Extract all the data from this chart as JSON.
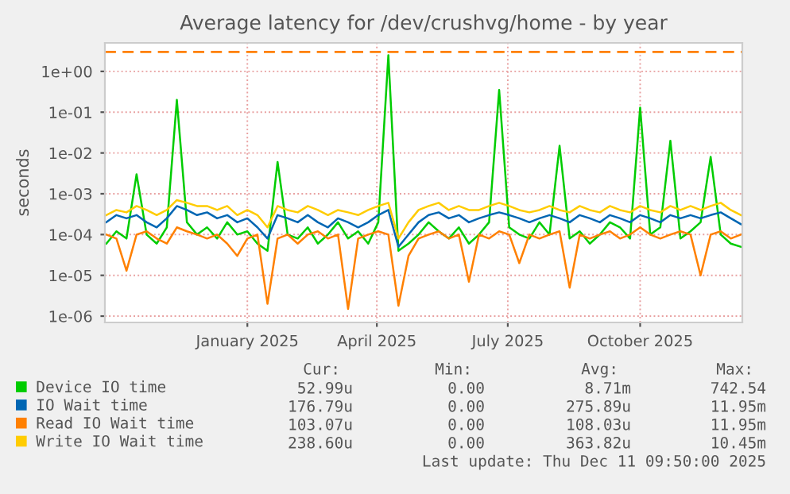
{
  "chart_data": {
    "type": "line",
    "title": "Average latency for /dev/crushvg/home - by year",
    "ylabel": "seconds",
    "log": "y",
    "xlim": [
      "2024-09-24",
      "2025-12-11"
    ],
    "xticks": [
      {
        "value": "2025-01-01",
        "label": "January 2025"
      },
      {
        "value": "2025-04-01",
        "label": "April 2025"
      },
      {
        "value": "2025-07-01",
        "label": "July 2025"
      },
      {
        "value": "2025-10-01",
        "label": "October 2025"
      }
    ],
    "ylim": [
      7e-07,
      5
    ],
    "yticks": [
      {
        "value": 1e-06,
        "label": "1e-06"
      },
      {
        "value": 1e-05,
        "label": "1e-05"
      },
      {
        "value": 0.0001,
        "label": "1e-04"
      },
      {
        "value": 0.001,
        "label": "1e-03"
      },
      {
        "value": 0.01,
        "label": "1e-02"
      },
      {
        "value": 0.1,
        "label": "1e-01"
      },
      {
        "value": 1,
        "label": "1e+00"
      }
    ],
    "grid": true,
    "legend": "bottom",
    "marker": "none",
    "line_style": "solid",
    "ref_lines": [
      {
        "axis": "y",
        "value": 3,
        "color": "#ff8000",
        "line_style": "dashed"
      }
    ],
    "x": [
      "2024-09-25",
      "2024-10-02",
      "2024-10-09",
      "2024-10-16",
      "2024-10-23",
      "2024-10-30",
      "2024-11-06",
      "2024-11-13",
      "2024-11-20",
      "2024-11-27",
      "2024-12-04",
      "2024-12-11",
      "2024-12-18",
      "2024-12-25",
      "2025-01-01",
      "2025-01-08",
      "2025-01-15",
      "2025-01-22",
      "2025-01-29",
      "2025-02-05",
      "2025-02-12",
      "2025-02-19",
      "2025-02-26",
      "2025-03-05",
      "2025-03-12",
      "2025-03-19",
      "2025-03-26",
      "2025-04-02",
      "2025-04-09",
      "2025-04-16",
      "2025-04-23",
      "2025-04-30",
      "2025-05-07",
      "2025-05-14",
      "2025-05-21",
      "2025-05-28",
      "2025-06-04",
      "2025-06-11",
      "2025-06-18",
      "2025-06-25",
      "2025-07-02",
      "2025-07-09",
      "2025-07-16",
      "2025-07-23",
      "2025-07-30",
      "2025-08-06",
      "2025-08-13",
      "2025-08-20",
      "2025-08-27",
      "2025-09-03",
      "2025-09-10",
      "2025-09-17",
      "2025-09-24",
      "2025-10-01",
      "2025-10-08",
      "2025-10-15",
      "2025-10-22",
      "2025-10-29",
      "2025-11-05",
      "2025-11-12",
      "2025-11-19",
      "2025-11-26",
      "2025-12-03",
      "2025-12-10"
    ],
    "series": [
      {
        "name": "Device IO time",
        "color": "#00cc00",
        "values": [
          6e-05,
          0.00012,
          8e-05,
          0.003,
          0.0001,
          6e-05,
          0.00015,
          0.2,
          0.0002,
          0.0001,
          0.00015,
          8e-05,
          0.0002,
          0.0001,
          0.00012,
          6e-05,
          4e-05,
          0.006,
          0.0001,
          8e-05,
          0.00015,
          6e-05,
          0.0001,
          0.0002,
          8e-05,
          0.00012,
          6e-05,
          0.0002,
          2.5,
          4e-05,
          6e-05,
          0.0001,
          0.0002,
          0.00012,
          8e-05,
          0.00015,
          6e-05,
          0.0001,
          0.0002,
          0.35,
          0.00015,
          0.0001,
          8e-05,
          0.0002,
          0.0001,
          0.015,
          8e-05,
          0.00012,
          6e-05,
          0.0001,
          0.0002,
          0.00015,
          8e-05,
          0.13,
          0.0001,
          0.00015,
          0.02,
          8e-05,
          0.00012,
          0.0002,
          0.008,
          0.0001,
          6e-05,
          5e-05
        ]
      },
      {
        "name": "IO Wait time",
        "color": "#0066b3",
        "values": [
          0.0002,
          0.0003,
          0.00025,
          0.0003,
          0.0002,
          0.00015,
          0.00025,
          0.0005,
          0.0004,
          0.0003,
          0.00035,
          0.00025,
          0.0003,
          0.0002,
          0.00025,
          0.00015,
          8e-05,
          0.0003,
          0.00025,
          0.0002,
          0.0003,
          0.0002,
          0.00015,
          0.00025,
          0.0002,
          0.00015,
          0.0002,
          0.0003,
          0.0004,
          5e-05,
          0.0001,
          0.0002,
          0.0003,
          0.00035,
          0.00025,
          0.0003,
          0.0002,
          0.00025,
          0.0003,
          0.00035,
          0.0003,
          0.00025,
          0.0002,
          0.00025,
          0.0003,
          0.00025,
          0.0002,
          0.0003,
          0.00025,
          0.0002,
          0.0003,
          0.00025,
          0.0002,
          0.0003,
          0.00025,
          0.0002,
          0.0003,
          0.00025,
          0.0003,
          0.00025,
          0.0003,
          0.00035,
          0.00025,
          0.00018
        ]
      },
      {
        "name": "Read IO Wait time",
        "color": "#ff8000",
        "values": [
          0.0001,
          8e-05,
          1.3e-05,
          0.0001,
          0.00012,
          8e-05,
          6e-05,
          0.00015,
          0.00012,
          0.0001,
          8e-05,
          0.0001,
          6e-05,
          3e-05,
          8e-05,
          0.0001,
          2e-06,
          8e-05,
          0.0001,
          6e-05,
          0.0001,
          0.00012,
          8e-05,
          0.0001,
          1.5e-06,
          8e-05,
          0.0001,
          0.00012,
          0.0001,
          1.8e-06,
          3e-05,
          8e-05,
          0.0001,
          0.00012,
          8e-05,
          0.0001,
          7e-06,
          0.0001,
          8e-05,
          0.00012,
          0.0001,
          2e-05,
          0.0001,
          8e-05,
          0.0001,
          0.00012,
          5e-06,
          0.0001,
          8e-05,
          0.0001,
          0.00012,
          8e-05,
          0.0001,
          0.00015,
          0.0001,
          8e-05,
          0.0001,
          0.00012,
          0.0001,
          1e-05,
          0.0001,
          0.00012,
          8e-05,
          0.0001
        ]
      },
      {
        "name": "Write IO Wait time",
        "color": "#ffcc00",
        "values": [
          0.0003,
          0.0004,
          0.00035,
          0.0005,
          0.0004,
          0.0003,
          0.0004,
          0.0007,
          0.0006,
          0.0005,
          0.0005,
          0.0004,
          0.0005,
          0.0003,
          0.0004,
          0.0003,
          0.00015,
          0.0005,
          0.0004,
          0.00035,
          0.0005,
          0.0004,
          0.0003,
          0.0004,
          0.00035,
          0.0003,
          0.0004,
          0.0005,
          0.0006,
          8e-05,
          0.0002,
          0.0004,
          0.0005,
          0.0006,
          0.0004,
          0.0005,
          0.0004,
          0.0004,
          0.0005,
          0.0006,
          0.0005,
          0.0004,
          0.00035,
          0.0004,
          0.0005,
          0.0004,
          0.00035,
          0.0005,
          0.0004,
          0.00035,
          0.0005,
          0.0004,
          0.00035,
          0.0005,
          0.0004,
          0.00035,
          0.0005,
          0.0004,
          0.0005,
          0.0004,
          0.0005,
          0.0006,
          0.0004,
          0.0003
        ]
      }
    ],
    "annotations": [
      "Cur:",
      "Min:",
      "Avg:",
      "Max:",
      "52.99u",
      "0.00",
      "8.71m",
      "742.54",
      "176.79u",
      "0.00",
      "275.89u",
      "11.95m",
      "103.07u",
      "0.00",
      "108.03u",
      "11.95m",
      "238.60u",
      "0.00",
      "363.82u",
      "10.45m",
      "Last update: Thu Dec 11 09:50:00 2025"
    ]
  }
}
